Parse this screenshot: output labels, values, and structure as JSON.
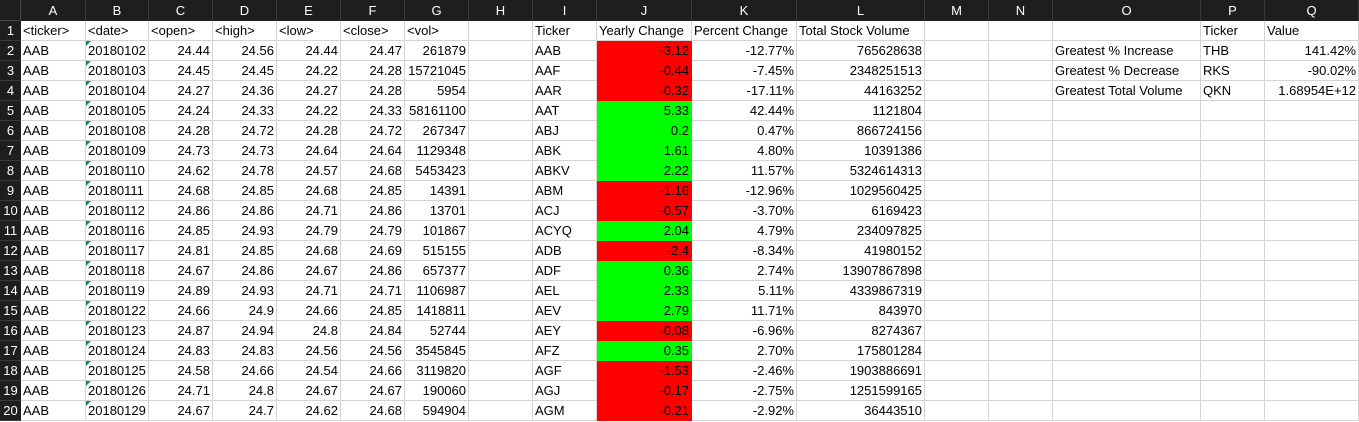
{
  "columns": [
    "A",
    "B",
    "C",
    "D",
    "E",
    "F",
    "G",
    "H",
    "I",
    "J",
    "K",
    "L",
    "M",
    "N",
    "O",
    "P",
    "Q"
  ],
  "rows": [
    [
      "<ticker>",
      "<date>",
      "<open>",
      "<high>",
      "<low>",
      "<close>",
      "<vol>",
      "",
      "Ticker",
      "Yearly Change",
      "Percent Change",
      "Total Stock Volume",
      "",
      "",
      "",
      "Ticker",
      "Value"
    ],
    [
      "AAB",
      "20180102",
      "24.44",
      "24.56",
      "24.44",
      "24.47",
      "261879",
      "",
      "AAB",
      "-3.12",
      "-12.77%",
      "765628638",
      "",
      "",
      "Greatest % Increase",
      "THB",
      "141.42%"
    ],
    [
      "AAB",
      "20180103",
      "24.45",
      "24.45",
      "24.22",
      "24.28",
      "15721045",
      "",
      "AAF",
      "-0.44",
      "-7.45%",
      "2348251513",
      "",
      "",
      "Greatest % Decrease",
      "RKS",
      "-90.02%"
    ],
    [
      "AAB",
      "20180104",
      "24.27",
      "24.36",
      "24.27",
      "24.28",
      "5954",
      "",
      "AAR",
      "-0.32",
      "-17.11%",
      "44163252",
      "",
      "",
      "Greatest Total Volume",
      "QKN",
      "1.68954E+12"
    ],
    [
      "AAB",
      "20180105",
      "24.24",
      "24.33",
      "24.22",
      "24.33",
      "58161100",
      "",
      "AAT",
      "5.33",
      "42.44%",
      "1121804",
      "",
      "",
      "",
      "",
      ""
    ],
    [
      "AAB",
      "20180108",
      "24.28",
      "24.72",
      "24.28",
      "24.72",
      "267347",
      "",
      "ABJ",
      "0.2",
      "0.47%",
      "866724156",
      "",
      "",
      "",
      "",
      ""
    ],
    [
      "AAB",
      "20180109",
      "24.73",
      "24.73",
      "24.64",
      "24.64",
      "1129348",
      "",
      "ABK",
      "1.61",
      "4.80%",
      "10391386",
      "",
      "",
      "",
      "",
      ""
    ],
    [
      "AAB",
      "20180110",
      "24.62",
      "24.78",
      "24.57",
      "24.68",
      "5453423",
      "",
      "ABKV",
      "2.22",
      "11.57%",
      "5324614313",
      "",
      "",
      "",
      "",
      ""
    ],
    [
      "AAB",
      "20180111",
      "24.68",
      "24.85",
      "24.68",
      "24.85",
      "14391",
      "",
      "ABM",
      "-1.16",
      "-12.96%",
      "1029560425",
      "",
      "",
      "",
      "",
      ""
    ],
    [
      "AAB",
      "20180112",
      "24.86",
      "24.86",
      "24.71",
      "24.86",
      "13701",
      "",
      "ACJ",
      "-0.57",
      "-3.70%",
      "6169423",
      "",
      "",
      "",
      "",
      ""
    ],
    [
      "AAB",
      "20180116",
      "24.85",
      "24.93",
      "24.79",
      "24.79",
      "101867",
      "",
      "ACYQ",
      "2.04",
      "4.79%",
      "234097825",
      "",
      "",
      "",
      "",
      ""
    ],
    [
      "AAB",
      "20180117",
      "24.81",
      "24.85",
      "24.68",
      "24.69",
      "515155",
      "",
      "ADB",
      "-2.4",
      "-8.34%",
      "41980152",
      "",
      "",
      "",
      "",
      ""
    ],
    [
      "AAB",
      "20180118",
      "24.67",
      "24.86",
      "24.67",
      "24.86",
      "657377",
      "",
      "ADF",
      "0.36",
      "2.74%",
      "13907867898",
      "",
      "",
      "",
      "",
      ""
    ],
    [
      "AAB",
      "20180119",
      "24.89",
      "24.93",
      "24.71",
      "24.71",
      "1106987",
      "",
      "AEL",
      "2.33",
      "5.11%",
      "4339867319",
      "",
      "",
      "",
      "",
      ""
    ],
    [
      "AAB",
      "20180122",
      "24.66",
      "24.9",
      "24.66",
      "24.85",
      "1418811",
      "",
      "AEV",
      "2.79",
      "11.71%",
      "843970",
      "",
      "",
      "",
      "",
      ""
    ],
    [
      "AAB",
      "20180123",
      "24.87",
      "24.94",
      "24.8",
      "24.84",
      "52744",
      "",
      "AEY",
      "-0.08",
      "-6.96%",
      "8274367",
      "",
      "",
      "",
      "",
      ""
    ],
    [
      "AAB",
      "20180124",
      "24.83",
      "24.83",
      "24.56",
      "24.56",
      "3545845",
      "",
      "AFZ",
      "0.35",
      "2.70%",
      "175801284",
      "",
      "",
      "",
      "",
      ""
    ],
    [
      "AAB",
      "20180125",
      "24.58",
      "24.66",
      "24.54",
      "24.66",
      "3119820",
      "",
      "AGF",
      "-1.53",
      "-2.46%",
      "1903886691",
      "",
      "",
      "",
      "",
      ""
    ],
    [
      "AAB",
      "20180126",
      "24.71",
      "24.8",
      "24.67",
      "24.67",
      "190060",
      "",
      "AGJ",
      "-0.17",
      "-2.75%",
      "1251599165",
      "",
      "",
      "",
      "",
      ""
    ],
    [
      "AAB",
      "20180129",
      "24.67",
      "24.7",
      "24.62",
      "24.68",
      "594904",
      "",
      "AGM",
      "-0.21",
      "-2.92%",
      "36443510",
      "",
      "",
      "",
      "",
      ""
    ]
  ],
  "colors": {
    "positive_fill": "#00ff00",
    "negative_fill": "#ff0000",
    "header_bg": "#1e1e1e",
    "gridline": "#d4d4d4"
  },
  "icons": {
    "cell_note_marker": "green-triangle-icon"
  }
}
